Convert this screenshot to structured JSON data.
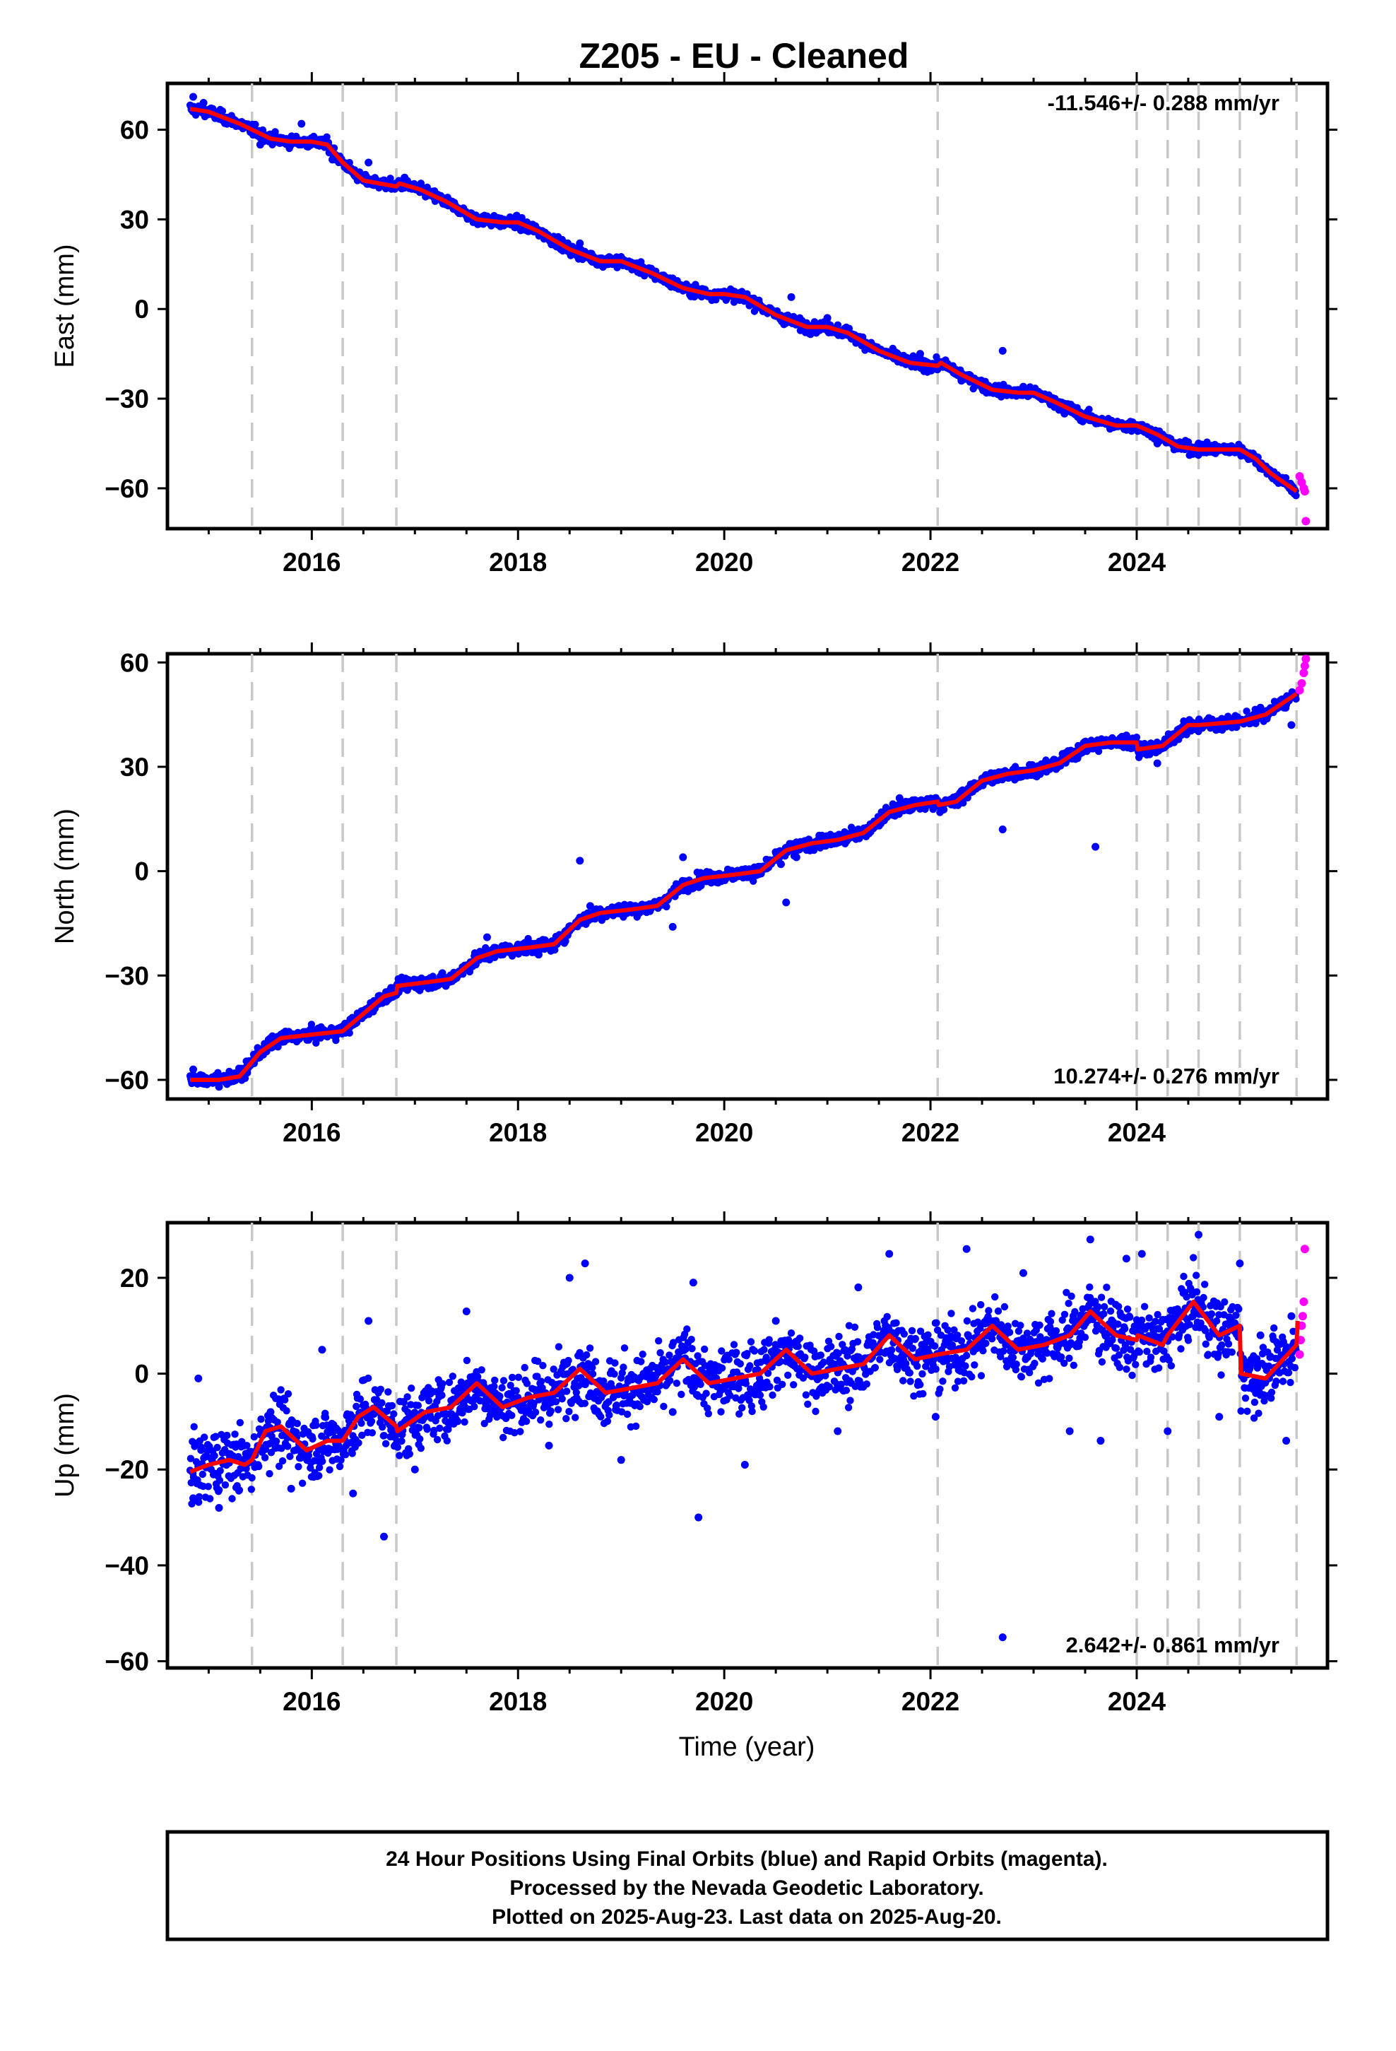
{
  "title": "Z205  - EU - Cleaned",
  "chart_data": [
    {
      "type": "scatter",
      "id": "east",
      "ylabel": "East (mm)",
      "xlabel": "",
      "xlim": [
        2014.6,
        2025.85
      ],
      "ylim": [
        -73.5,
        75.5
      ],
      "yticks": [
        60,
        30,
        0,
        -30,
        -60
      ],
      "ytick_labels": [
        "60",
        "30",
        "0",
        "−30",
        "−60"
      ],
      "xticks": [
        2016,
        2018,
        2020,
        2022,
        2024
      ],
      "xtick_labels": [
        "2016",
        "2018",
        "2020",
        "2022",
        "2024"
      ],
      "rate": "-11.546+/- 0.288 mm/yr",
      "rate_position": "top-right",
      "equipment_changes": [
        2015.42,
        2016.3,
        2016.82,
        2022.07,
        2024.0,
        2024.3,
        2024.6,
        2025.0,
        2025.55
      ],
      "model_line": [
        [
          2014.82,
          67
        ],
        [
          2015.0,
          66
        ],
        [
          2015.3,
          62
        ],
        [
          2015.6,
          57
        ],
        [
          2015.8,
          56
        ],
        [
          2016.0,
          56
        ],
        [
          2016.15,
          55
        ],
        [
          2016.3,
          49
        ],
        [
          2016.5,
          43
        ],
        [
          2016.82,
          41
        ],
        [
          2016.85,
          42
        ],
        [
          2017.05,
          40
        ],
        [
          2017.3,
          36
        ],
        [
          2017.6,
          30
        ],
        [
          2017.85,
          29
        ],
        [
          2018.0,
          29
        ],
        [
          2018.2,
          26
        ],
        [
          2018.5,
          20
        ],
        [
          2018.8,
          16
        ],
        [
          2019.0,
          16
        ],
        [
          2019.3,
          12
        ],
        [
          2019.6,
          7
        ],
        [
          2019.85,
          5
        ],
        [
          2020.0,
          5
        ],
        [
          2020.2,
          4
        ],
        [
          2020.5,
          -2
        ],
        [
          2020.8,
          -6
        ],
        [
          2021.0,
          -6
        ],
        [
          2021.2,
          -8
        ],
        [
          2021.5,
          -14
        ],
        [
          2021.8,
          -18
        ],
        [
          2022.07,
          -19
        ],
        [
          2022.1,
          -18
        ],
        [
          2022.3,
          -22
        ],
        [
          2022.6,
          -27
        ],
        [
          2022.85,
          -28
        ],
        [
          2023.0,
          -28
        ],
        [
          2023.2,
          -31
        ],
        [
          2023.5,
          -36
        ],
        [
          2023.8,
          -39
        ],
        [
          2024.0,
          -39
        ],
        [
          2024.2,
          -42
        ],
        [
          2024.4,
          -46
        ],
        [
          2024.6,
          -47
        ],
        [
          2024.8,
          -47
        ],
        [
          2025.0,
          -47
        ],
        [
          2025.15,
          -50
        ],
        [
          2025.3,
          -55
        ],
        [
          2025.55,
          -61
        ]
      ],
      "final_points": [
        [
          2014.85,
          71
        ],
        [
          2014.95,
          69
        ],
        [
          2015.2,
          64
        ],
        [
          2015.5,
          55
        ],
        [
          2015.9,
          62
        ],
        [
          2016.2,
          50
        ],
        [
          2016.55,
          49
        ],
        [
          2016.9,
          44
        ],
        [
          2017.3,
          35
        ],
        [
          2017.7,
          31
        ],
        [
          2018.1,
          26
        ],
        [
          2018.6,
          22
        ],
        [
          2018.9,
          17
        ],
        [
          2019.4,
          10
        ],
        [
          2019.7,
          6
        ],
        [
          2020.15,
          3
        ],
        [
          2020.6,
          -4
        ],
        [
          2020.65,
          4
        ],
        [
          2021.0,
          -3
        ],
        [
          2021.4,
          -13
        ],
        [
          2021.9,
          -15
        ],
        [
          2022.3,
          -24
        ],
        [
          2022.7,
          -14
        ],
        [
          2022.9,
          -26
        ],
        [
          2023.3,
          -35
        ],
        [
          2023.7,
          -38
        ],
        [
          2024.2,
          -45
        ],
        [
          2024.6,
          -45
        ],
        [
          2024.9,
          -48
        ],
        [
          2025.2,
          -53
        ],
        [
          2025.5,
          -59
        ]
      ],
      "rapid_points": [
        [
          2025.58,
          -56
        ],
        [
          2025.6,
          -58
        ],
        [
          2025.62,
          -60
        ],
        [
          2025.63,
          -61
        ],
        [
          2025.64,
          -71
        ]
      ]
    },
    {
      "type": "scatter",
      "id": "north",
      "ylabel": "North (mm)",
      "xlabel": "",
      "xlim": [
        2014.6,
        2025.85
      ],
      "ylim": [
        -65.5,
        62.5
      ],
      "yticks": [
        60,
        30,
        0,
        -30,
        -60
      ],
      "ytick_labels": [
        "60",
        "30",
        "0",
        "−30",
        "−60"
      ],
      "xticks": [
        2016,
        2018,
        2020,
        2022,
        2024
      ],
      "xtick_labels": [
        "2016",
        "2018",
        "2020",
        "2022",
        "2024"
      ],
      "rate": "10.274+/- 0.276 mm/yr",
      "rate_position": "bottom-right",
      "equipment_changes": [
        2015.42,
        2016.3,
        2016.82,
        2022.07,
        2024.0,
        2024.3,
        2024.6,
        2025.0,
        2025.55
      ],
      "model_line": [
        [
          2014.82,
          -60
        ],
        [
          2015.1,
          -60
        ],
        [
          2015.3,
          -59
        ],
        [
          2015.5,
          -52
        ],
        [
          2015.7,
          -48
        ],
        [
          2016.0,
          -47
        ],
        [
          2016.3,
          -46
        ],
        [
          2016.5,
          -41
        ],
        [
          2016.7,
          -36
        ],
        [
          2016.82,
          -35
        ],
        [
          2016.83,
          -33
        ],
        [
          2017.1,
          -32
        ],
        [
          2017.35,
          -31
        ],
        [
          2017.6,
          -25
        ],
        [
          2017.8,
          -23
        ],
        [
          2018.1,
          -22
        ],
        [
          2018.35,
          -21
        ],
        [
          2018.6,
          -14
        ],
        [
          2018.8,
          -12
        ],
        [
          2019.1,
          -11
        ],
        [
          2019.35,
          -10
        ],
        [
          2019.6,
          -4
        ],
        [
          2019.8,
          -2
        ],
        [
          2020.1,
          -1
        ],
        [
          2020.35,
          0
        ],
        [
          2020.6,
          6
        ],
        [
          2020.85,
          8
        ],
        [
          2021.1,
          9
        ],
        [
          2021.35,
          11
        ],
        [
          2021.6,
          17
        ],
        [
          2021.85,
          19
        ],
        [
          2022.07,
          20
        ],
        [
          2022.08,
          19
        ],
        [
          2022.25,
          20
        ],
        [
          2022.5,
          26
        ],
        [
          2022.75,
          28
        ],
        [
          2023.0,
          29
        ],
        [
          2023.25,
          31
        ],
        [
          2023.5,
          36
        ],
        [
          2023.75,
          37
        ],
        [
          2024.0,
          37
        ],
        [
          2024.01,
          35
        ],
        [
          2024.25,
          36
        ],
        [
          2024.5,
          42
        ],
        [
          2024.6,
          42
        ],
        [
          2025.0,
          43
        ],
        [
          2025.25,
          45
        ],
        [
          2025.55,
          51
        ]
      ],
      "final_points": [
        [
          2014.85,
          -57
        ],
        [
          2015.1,
          -62
        ],
        [
          2015.6,
          -48
        ],
        [
          2016.1,
          -46
        ],
        [
          2016.6,
          -38
        ],
        [
          2017.3,
          -33
        ],
        [
          2017.7,
          -19
        ],
        [
          2018.2,
          -24
        ],
        [
          2018.6,
          3
        ],
        [
          2018.7,
          -10
        ],
        [
          2019.5,
          -16
        ],
        [
          2019.6,
          4
        ],
        [
          2020.1,
          -2
        ],
        [
          2020.55,
          2
        ],
        [
          2020.6,
          -9
        ],
        [
          2020.7,
          4
        ],
        [
          2021.3,
          12
        ],
        [
          2021.7,
          21
        ],
        [
          2022.3,
          23
        ],
        [
          2022.7,
          12
        ],
        [
          2023.3,
          33
        ],
        [
          2023.6,
          7
        ],
        [
          2023.9,
          39
        ],
        [
          2024.2,
          31
        ],
        [
          2024.7,
          44
        ],
        [
          2025.2,
          47
        ],
        [
          2025.5,
          42
        ]
      ],
      "rapid_points": [
        [
          2025.58,
          52
        ],
        [
          2025.6,
          54
        ],
        [
          2025.62,
          57
        ],
        [
          2025.63,
          59
        ],
        [
          2025.64,
          61
        ]
      ]
    },
    {
      "type": "scatter",
      "id": "up",
      "ylabel": "Up (mm)",
      "xlabel": "Time (year)",
      "xlim": [
        2014.6,
        2025.85
      ],
      "ylim": [
        -61.4,
        31.5
      ],
      "yticks": [
        20,
        0,
        -20,
        -40,
        -60
      ],
      "ytick_labels": [
        "20",
        "0",
        "−20",
        "−40",
        "−60"
      ],
      "xticks": [
        2016,
        2018,
        2020,
        2022,
        2024
      ],
      "xtick_labels": [
        "2016",
        "2018",
        "2020",
        "2022",
        "2024"
      ],
      "rate": "2.642+/- 0.861 mm/yr",
      "rate_position": "bottom-right",
      "equipment_changes": [
        2015.42,
        2016.3,
        2016.82,
        2022.07,
        2024.0,
        2024.3,
        2024.6,
        2025.0,
        2025.55
      ],
      "model_line": [
        [
          2014.82,
          -20.5
        ],
        [
          2015.0,
          -19
        ],
        [
          2015.2,
          -18
        ],
        [
          2015.35,
          -19
        ],
        [
          2015.42,
          -18
        ],
        [
          2015.55,
          -12
        ],
        [
          2015.7,
          -11
        ],
        [
          2015.95,
          -16
        ],
        [
          2016.15,
          -14
        ],
        [
          2016.3,
          -14
        ],
        [
          2016.45,
          -9
        ],
        [
          2016.6,
          -7
        ],
        [
          2016.82,
          -11
        ],
        [
          2016.83,
          -12
        ],
        [
          2017.1,
          -8
        ],
        [
          2017.35,
          -7
        ],
        [
          2017.6,
          -2
        ],
        [
          2017.85,
          -7
        ],
        [
          2018.1,
          -5
        ],
        [
          2018.35,
          -4
        ],
        [
          2018.6,
          1
        ],
        [
          2018.85,
          -4
        ],
        [
          2019.1,
          -3
        ],
        [
          2019.35,
          -2
        ],
        [
          2019.6,
          3
        ],
        [
          2019.85,
          -2
        ],
        [
          2020.1,
          -1
        ],
        [
          2020.35,
          0
        ],
        [
          2020.6,
          5
        ],
        [
          2020.85,
          0
        ],
        [
          2021.1,
          1
        ],
        [
          2021.35,
          2
        ],
        [
          2021.6,
          8
        ],
        [
          2021.85,
          3
        ],
        [
          2022.07,
          4
        ],
        [
          2022.35,
          5
        ],
        [
          2022.6,
          10
        ],
        [
          2022.85,
          5
        ],
        [
          2023.1,
          6
        ],
        [
          2023.35,
          8
        ],
        [
          2023.55,
          13
        ],
        [
          2023.8,
          8
        ],
        [
          2024.0,
          7
        ],
        [
          2024.01,
          8
        ],
        [
          2024.25,
          6
        ],
        [
          2024.3,
          8
        ],
        [
          2024.55,
          15
        ],
        [
          2024.8,
          8
        ],
        [
          2025.0,
          10
        ],
        [
          2025.01,
          0
        ],
        [
          2025.25,
          -1
        ],
        [
          2025.55,
          6
        ],
        [
          2025.56,
          11
        ]
      ],
      "final_points": [
        [
          2014.85,
          -26
        ],
        [
          2014.9,
          -1
        ],
        [
          2015.1,
          -28
        ],
        [
          2015.6,
          -8
        ],
        [
          2015.8,
          -24
        ],
        [
          2016.1,
          5
        ],
        [
          2016.4,
          -25
        ],
        [
          2016.55,
          11
        ],
        [
          2016.7,
          -34
        ],
        [
          2017.0,
          -20
        ],
        [
          2017.5,
          13
        ],
        [
          2017.8,
          -8
        ],
        [
          2018.3,
          -15
        ],
        [
          2018.5,
          20
        ],
        [
          2018.65,
          23
        ],
        [
          2019.0,
          -18
        ],
        [
          2019.5,
          -8
        ],
        [
          2019.7,
          19
        ],
        [
          2019.75,
          -30
        ],
        [
          2020.2,
          -19
        ],
        [
          2020.5,
          11
        ],
        [
          2021.1,
          -12
        ],
        [
          2021.3,
          18
        ],
        [
          2021.6,
          25
        ],
        [
          2022.05,
          -9
        ],
        [
          2022.35,
          26
        ],
        [
          2022.7,
          -55
        ],
        [
          2022.9,
          21
        ],
        [
          2023.35,
          -12
        ],
        [
          2023.55,
          28
        ],
        [
          2023.65,
          -14
        ],
        [
          2023.9,
          24
        ],
        [
          2024.05,
          25
        ],
        [
          2024.3,
          -12
        ],
        [
          2024.6,
          29
        ],
        [
          2024.8,
          -9
        ],
        [
          2025.0,
          23
        ],
        [
          2025.2,
          8
        ],
        [
          2025.45,
          -14
        ],
        [
          2025.5,
          12
        ]
      ],
      "rapid_points": [
        [
          2025.58,
          4
        ],
        [
          2025.59,
          7
        ],
        [
          2025.6,
          10
        ],
        [
          2025.61,
          12
        ],
        [
          2025.62,
          15
        ],
        [
          2025.63,
          26
        ]
      ]
    }
  ],
  "colors": {
    "final": "#0000ff",
    "rapid": "#ff00ff",
    "model": "#ff0000",
    "breaks": "#c8c8c8",
    "axis": "#000000"
  },
  "footer": {
    "line1": "24 Hour Positions Using Final Orbits (blue) and Rapid Orbits (magenta).",
    "line2": "Processed by the Nevada Geodetic Laboratory.",
    "line3": "Plotted on 2025-Aug-23. Last data on 2025-Aug-20."
  }
}
